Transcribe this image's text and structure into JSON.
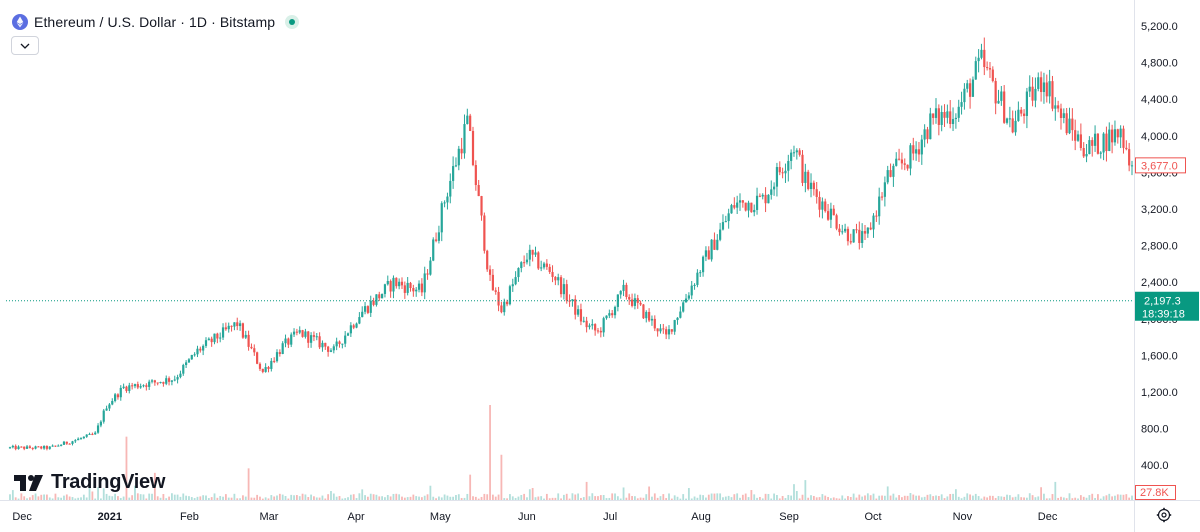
{
  "header": {
    "title": "Ethereum / U.S. Dollar · 1D · Bitstamp"
  },
  "logo": {
    "text": "TradingView"
  },
  "colors": {
    "up": "#26a69a",
    "down": "#ef5350",
    "up_volume": "#b2dfdb",
    "down_volume": "#f7b7b5",
    "price_label_bg": "#089981",
    "last_label_border": "#ef5350"
  },
  "chart_data": {
    "type": "candlestick",
    "y_ticks": [
      "5,200.0",
      "4,800.0",
      "4,400.0",
      "4,000.0",
      "3,600.0",
      "3,200.0",
      "2,800.0",
      "2,400.0",
      "2,000.0",
      "1,600.0",
      "1,200.0",
      "800.0",
      "400.0"
    ],
    "x_ticks": [
      "Dec",
      "2021",
      "Feb",
      "Mar",
      "Apr",
      "May",
      "Jun",
      "Jul",
      "Aug",
      "Sep",
      "Oct",
      "Nov",
      "Dec"
    ],
    "ylim": [
      0,
      5400
    ],
    "current_price": {
      "price": "2,197.3",
      "countdown": "18:39:18",
      "value": 2197.3
    },
    "last_close": {
      "price": "3,677.0",
      "value": 3677
    },
    "volume_label": "27.8K",
    "anchors": [
      [
        "2020-12-01",
        590
      ],
      [
        "2020-12-15",
        590
      ],
      [
        "2020-12-31",
        740
      ],
      [
        "2021-01-04",
        1050
      ],
      [
        "2021-01-10",
        1250
      ],
      [
        "2021-01-20",
        1300
      ],
      [
        "2021-01-28",
        1350
      ],
      [
        "2021-02-05",
        1650
      ],
      [
        "2021-02-19",
        1950
      ],
      [
        "2021-02-28",
        1420
      ],
      [
        "2021-03-07",
        1700
      ],
      [
        "2021-03-13",
        1850
      ],
      [
        "2021-03-25",
        1650
      ],
      [
        "2021-04-03",
        2050
      ],
      [
        "2021-04-15",
        2400
      ],
      [
        "2021-04-25",
        2300
      ],
      [
        "2021-05-03",
        3300
      ],
      [
        "2021-05-11",
        4150
      ],
      [
        "2021-05-19",
        2400
      ],
      [
        "2021-05-23",
        2100
      ],
      [
        "2021-06-01",
        2700
      ],
      [
        "2021-06-10",
        2500
      ],
      [
        "2021-06-21",
        1950
      ],
      [
        "2021-06-26",
        1850
      ],
      [
        "2021-07-05",
        2300
      ],
      [
        "2021-07-20",
        1800
      ],
      [
        "2021-08-01",
        2550
      ],
      [
        "2021-08-13",
        3250
      ],
      [
        "2021-08-23",
        3300
      ],
      [
        "2021-09-03",
        3900
      ],
      [
        "2021-09-07",
        3500
      ],
      [
        "2021-09-21",
        2950
      ],
      [
        "2021-09-28",
        2850
      ],
      [
        "2021-10-06",
        3550
      ],
      [
        "2021-10-15",
        3800
      ],
      [
        "2021-10-21",
        4150
      ],
      [
        "2021-10-31",
        4300
      ],
      [
        "2021-11-08",
        4800
      ],
      [
        "2021-11-19",
        4100
      ],
      [
        "2021-11-30",
        4650
      ],
      [
        "2021-12-06",
        4200
      ],
      [
        "2021-12-15",
        3850
      ],
      [
        "2021-12-27",
        4050
      ],
      [
        "2021-12-31",
        3677
      ]
    ],
    "volume_spikes": [
      [
        "2021-01-11",
        700
      ],
      [
        "2021-01-21",
        300
      ],
      [
        "2021-02-23",
        350
      ],
      [
        "2021-05-12",
        280
      ],
      [
        "2021-05-19",
        1050
      ],
      [
        "2021-05-23",
        500
      ],
      [
        "2021-06-22",
        200
      ],
      [
        "2021-09-07",
        220
      ],
      [
        "2021-10-06",
        150
      ],
      [
        "2021-12-04",
        200
      ]
    ]
  }
}
